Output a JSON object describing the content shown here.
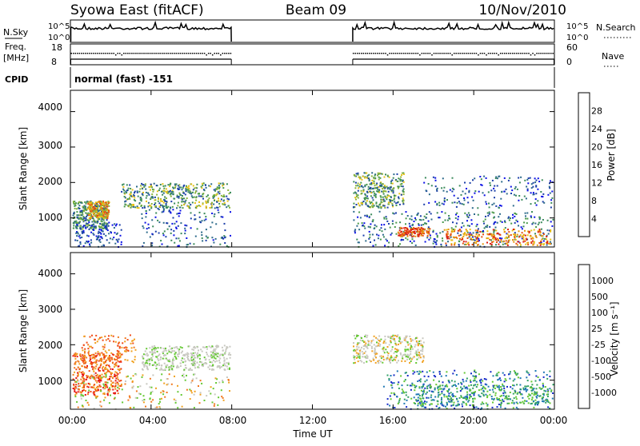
{
  "header": {
    "title_left": "Syowa East (fitACF)",
    "title_center": "Beam 09",
    "title_right": "10/Nov/2010"
  },
  "top_panels": {
    "nsky_label": "N.Sky",
    "nsky_ticks": [
      "10^5",
      "10^0"
    ],
    "nsearch_label": "N.Search",
    "nsearch_ticks": [
      "10^5",
      "10^0"
    ],
    "freq_label": "Freq.",
    "freq_unit": "[MHz]",
    "freq_ticks": [
      "18",
      "8"
    ],
    "nave_label": "Nave",
    "nave_ticks": [
      "60",
      "0"
    ],
    "cpid_label": "CPID",
    "cpid_value": "normal (fast) -151"
  },
  "chart_data": [
    {
      "type": "heatmap",
      "name": "power",
      "ylabel": "Slant Range [km]",
      "xlabel": "",
      "ylim": [
        180,
        4600
      ],
      "xlim_hours": [
        0,
        24
      ],
      "y_ticks": [
        "4000",
        "3000",
        "2000",
        "1000"
      ],
      "colorbar": {
        "label": "Power [dB]",
        "ticks": [
          "28",
          "24",
          "20",
          "16",
          "12",
          "8",
          "4"
        ],
        "colors": [
          "#0a10e6",
          "#1a3ea8",
          "#2c6a8a",
          "#3a8a5a",
          "#4a9a4a",
          "#8ab43c",
          "#e6c014",
          "#e6960e",
          "#e65010",
          "#dc1c10"
        ]
      },
      "data_gap_hours": [
        8,
        14
      ]
    },
    {
      "type": "heatmap",
      "name": "velocity",
      "ylabel": "Slant Range [km]",
      "xlabel": "Time UT",
      "ylim": [
        180,
        4600
      ],
      "xlim_hours": [
        0,
        24
      ],
      "y_ticks": [
        "4000",
        "3000",
        "2000",
        "1000"
      ],
      "x_ticks": [
        "00:00",
        "04:00",
        "08:00",
        "12:00",
        "16:00",
        "20:00",
        "00:00"
      ],
      "colorbar": {
        "label": "Velocity [m s⁻¹]",
        "ticks": [
          "1000",
          "500",
          "100",
          "25",
          "-25",
          "-100",
          "-500",
          "-1000"
        ],
        "colors": [
          "#1428c8",
          "#1e78b4",
          "#32a064",
          "#64c832",
          "#c8c8c0",
          "#f0a01e",
          "#f0781e",
          "#f04a14",
          "#e61414"
        ]
      },
      "data_gap_hours": [
        8,
        14
      ]
    }
  ]
}
